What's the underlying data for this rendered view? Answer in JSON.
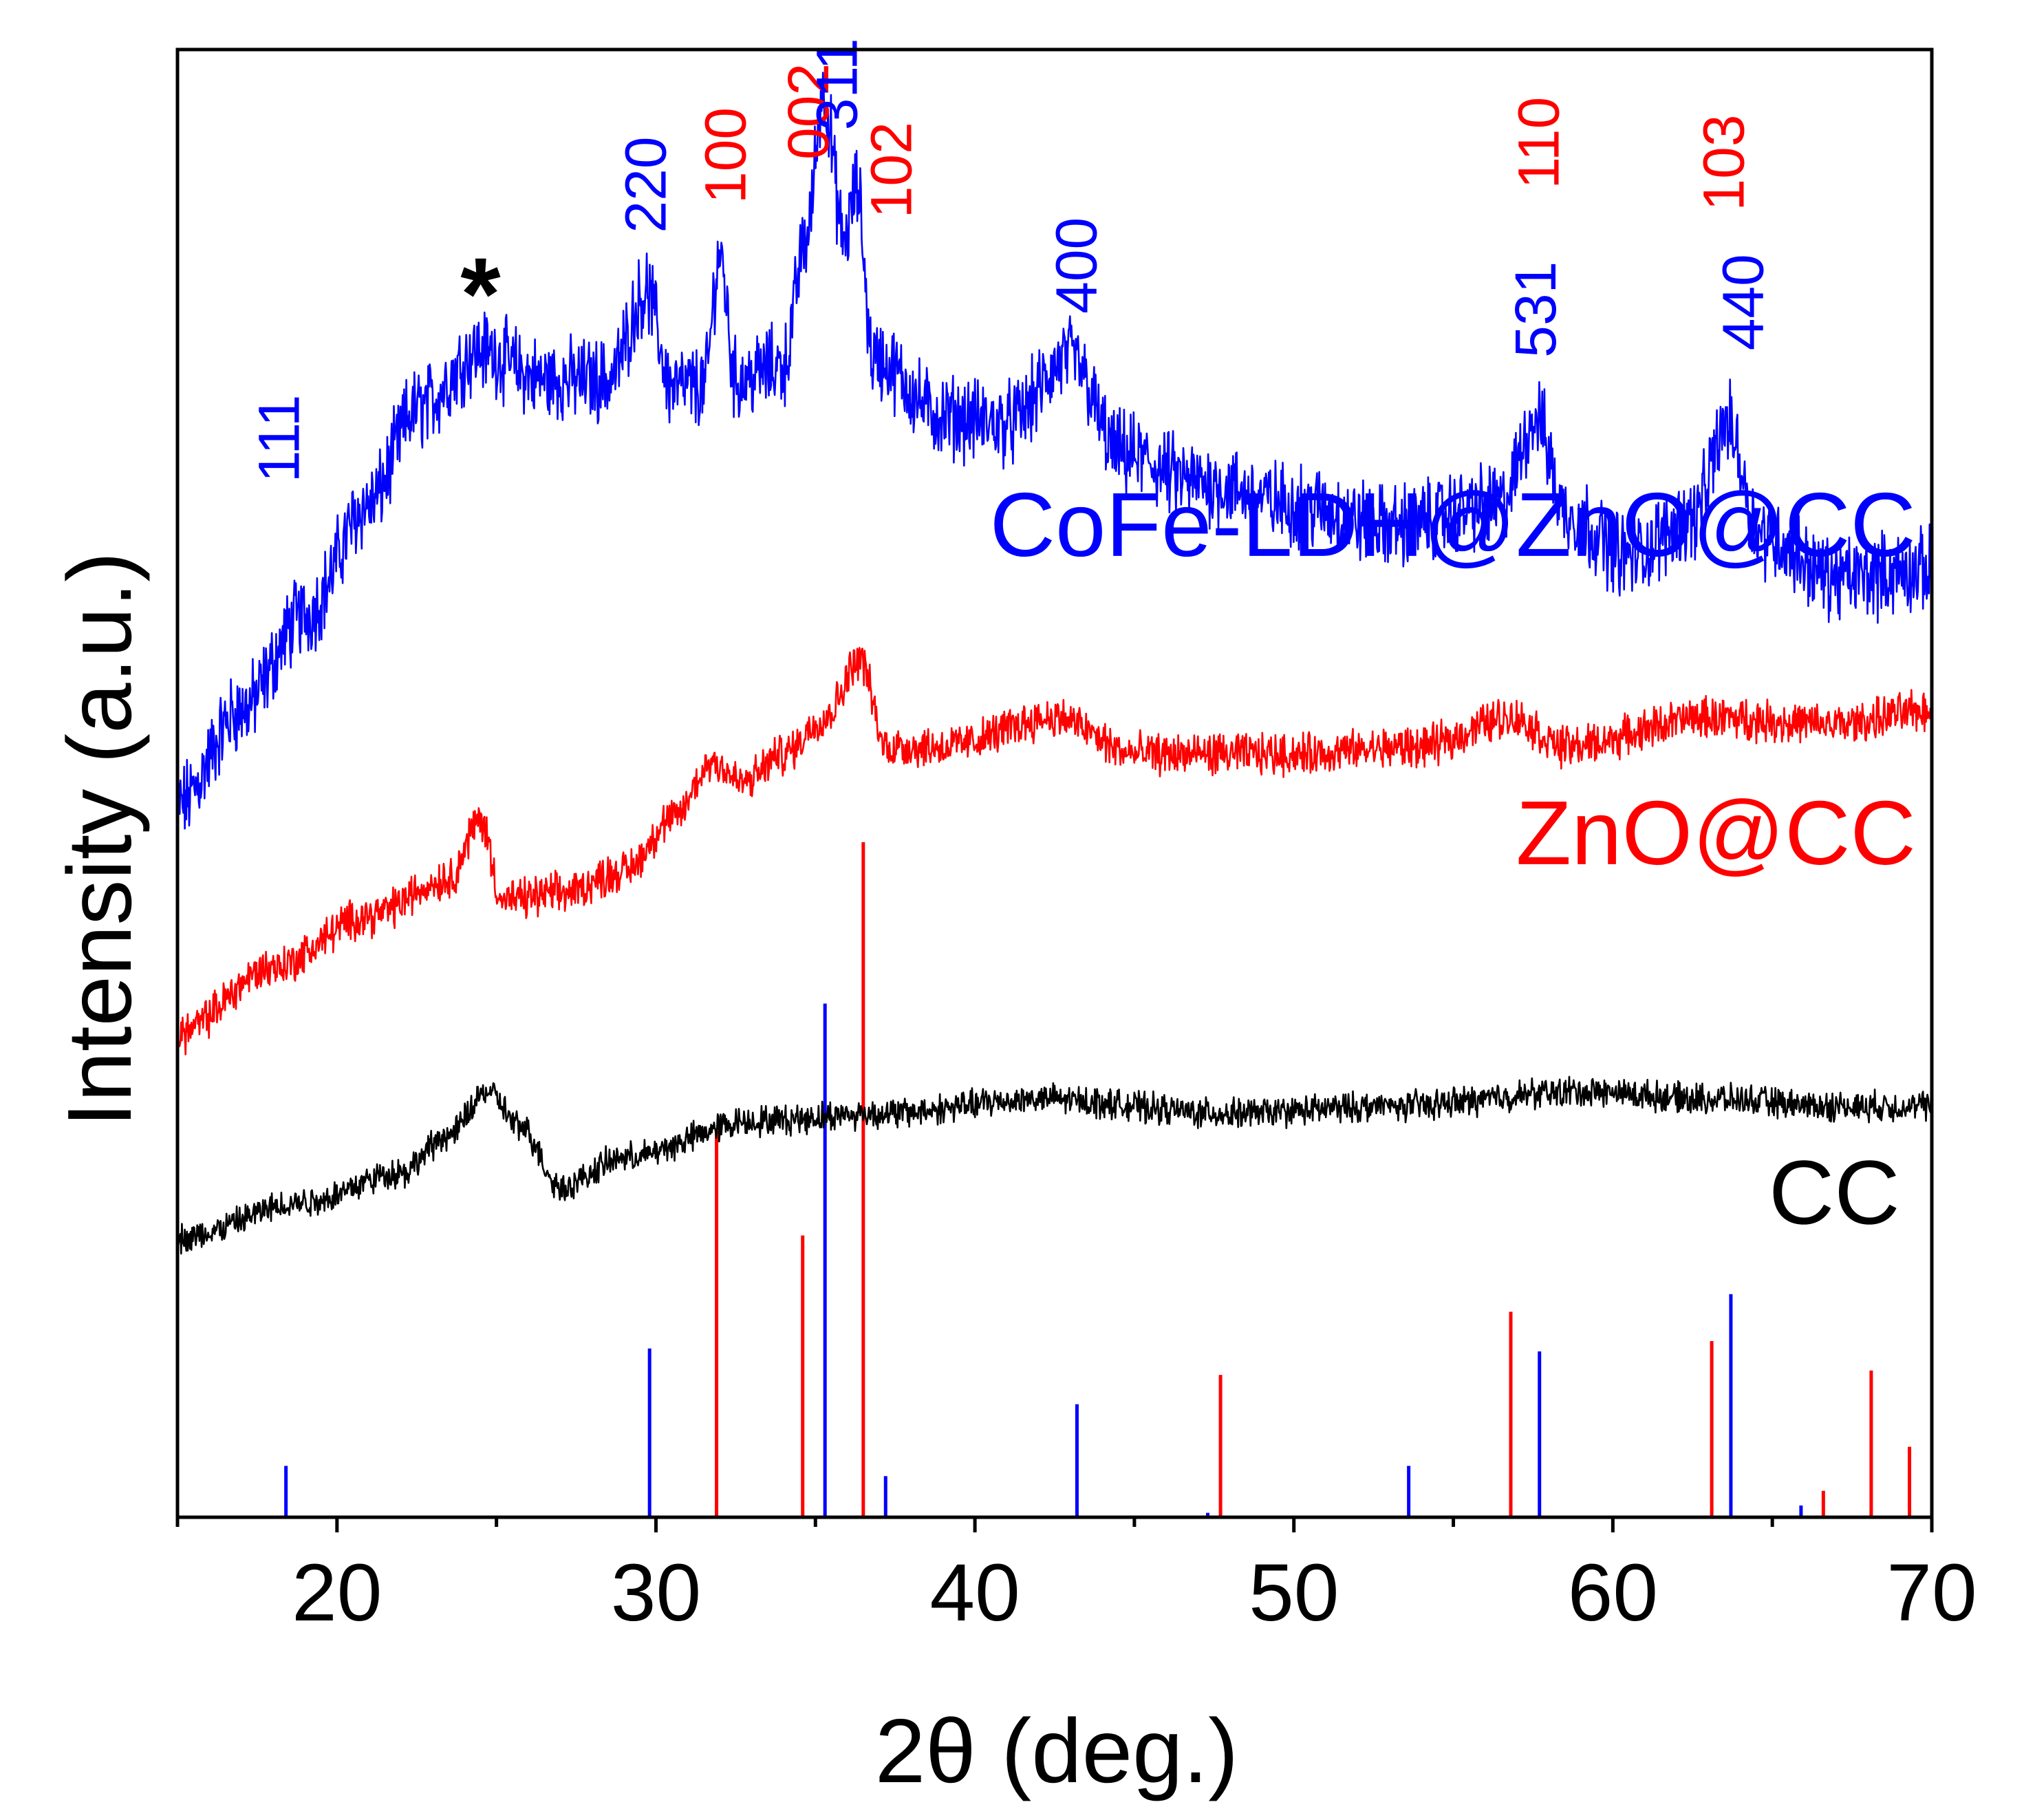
{
  "chart_data": {
    "type": "line",
    "title": "",
    "xlabel": "2θ (deg.)",
    "ylabel": "Intensity (a.u.)",
    "xlim": [
      15,
      70
    ],
    "x_ticks": [
      20,
      30,
      40,
      50,
      60,
      70
    ],
    "x_minor_step": 5,
    "y_ticks": [],
    "grid": false,
    "colors": {
      "blue": "#0000ff",
      "red": "#ff0000",
      "black": "#000000"
    },
    "series": [
      {
        "name": "CoFe-LDH@ZnO@CC",
        "color": "#0000ff",
        "noise": 0.045,
        "points": [
          [
            15,
            0.485
          ],
          [
            17,
            0.55
          ],
          [
            19,
            0.615
          ],
          [
            21,
            0.69
          ],
          [
            22.5,
            0.755
          ],
          [
            24.5,
            0.795
          ],
          [
            26.5,
            0.775
          ],
          [
            28.5,
            0.775
          ],
          [
            29.7,
            0.835
          ],
          [
            30.5,
            0.77
          ],
          [
            31.5,
            0.77
          ],
          [
            32.0,
            0.86
          ],
          [
            32.5,
            0.775
          ],
          [
            34,
            0.785
          ],
          [
            34.7,
            0.87
          ],
          [
            35.25,
            0.97
          ],
          [
            35.9,
            0.87
          ],
          [
            36.3,
            0.905
          ],
          [
            36.8,
            0.79
          ],
          [
            39,
            0.75
          ],
          [
            41,
            0.745
          ],
          [
            43,
            0.79
          ],
          [
            44.5,
            0.725
          ],
          [
            47,
            0.705
          ],
          [
            50,
            0.69
          ],
          [
            53,
            0.675
          ],
          [
            56.5,
            0.69
          ],
          [
            57.6,
            0.75
          ],
          [
            58.5,
            0.685
          ],
          [
            60.5,
            0.655
          ],
          [
            62.5,
            0.68
          ],
          [
            63.6,
            0.745
          ],
          [
            64.6,
            0.67
          ],
          [
            67,
            0.64
          ],
          [
            70,
            0.645
          ]
        ]
      },
      {
        "name": "ZnO@CC",
        "color": "#ff0000",
        "noise": 0.022,
        "points": [
          [
            15,
            0.33
          ],
          [
            18,
            0.375
          ],
          [
            21,
            0.41
          ],
          [
            23.5,
            0.435
          ],
          [
            24.5,
            0.475
          ],
          [
            25.2,
            0.42
          ],
          [
            27,
            0.425
          ],
          [
            29,
            0.44
          ],
          [
            30.5,
            0.475
          ],
          [
            31.8,
            0.515
          ],
          [
            32.7,
            0.5
          ],
          [
            34,
            0.52
          ],
          [
            35.3,
            0.545
          ],
          [
            36.4,
            0.585
          ],
          [
            37.2,
            0.525
          ],
          [
            39,
            0.525
          ],
          [
            42.5,
            0.545
          ],
          [
            45,
            0.52
          ],
          [
            50,
            0.52
          ],
          [
            54,
            0.525
          ],
          [
            56.8,
            0.545
          ],
          [
            58.5,
            0.525
          ],
          [
            63,
            0.545
          ],
          [
            67,
            0.54
          ],
          [
            70,
            0.55
          ]
        ]
      },
      {
        "name": "CC",
        "color": "#000000",
        "noise": 0.016,
        "points": [
          [
            15,
            0.19
          ],
          [
            19,
            0.215
          ],
          [
            22,
            0.235
          ],
          [
            23.5,
            0.26
          ],
          [
            24.7,
            0.29
          ],
          [
            25.8,
            0.265
          ],
          [
            27,
            0.225
          ],
          [
            29,
            0.245
          ],
          [
            33,
            0.27
          ],
          [
            37,
            0.275
          ],
          [
            42,
            0.285
          ],
          [
            48,
            0.275
          ],
          [
            53,
            0.28
          ],
          [
            59,
            0.29
          ],
          [
            63,
            0.285
          ],
          [
            67,
            0.28
          ],
          [
            70,
            0.28
          ]
        ]
      }
    ],
    "reference_bars": [
      {
        "color": "#0000ff",
        "x": [
          18.4,
          29.8,
          35.3,
          37.2,
          43.2,
          47.3,
          53.6,
          57.7,
          63.7,
          65.9
        ],
        "heights": [
          0.035,
          0.115,
          0.35,
          0.028,
          0.077,
          0.003,
          0.035,
          0.113,
          0.152,
          0.008
        ]
      },
      {
        "color": "#ff0000",
        "x": [
          31.9,
          34.6,
          36.5,
          47.7,
          56.8,
          63.1,
          66.6,
          68.1,
          69.3
        ],
        "heights": [
          0.263,
          0.192,
          0.46,
          0.097,
          0.14,
          0.12,
          0.018,
          0.1,
          0.048
        ]
      }
    ],
    "series_labels": [
      {
        "text": "CoFe-LDH@ZnO@CC",
        "color": "#0000ff",
        "x": 69.5,
        "y": 0.655
      },
      {
        "text": "ZnO@CC",
        "color": "#ff0000",
        "x": 69.5,
        "y": 0.445
      },
      {
        "text": "CC",
        "color": "#000000",
        "x": 69.0,
        "y": 0.2
      }
    ],
    "peak_labels": [
      {
        "text": "111",
        "color": "#0000ff",
        "x": 18.2,
        "y": 0.705
      },
      {
        "text": "220",
        "color": "#0000ff",
        "x": 29.7,
        "y": 0.875
      },
      {
        "text": "100",
        "color": "#ff0000",
        "x": 32.2,
        "y": 0.895
      },
      {
        "text": "002",
        "color": "#ff0000",
        "x": 34.8,
        "y": 0.925
      },
      {
        "text": "311",
        "color": "#0000ff",
        "x": 35.7,
        "y": 0.945
      },
      {
        "text": "102",
        "color": "#ff0000",
        "x": 37.4,
        "y": 0.885
      },
      {
        "text": "400",
        "color": "#0000ff",
        "x": 43.2,
        "y": 0.82
      },
      {
        "text": "531",
        "color": "#0000ff",
        "x": 57.6,
        "y": 0.79
      },
      {
        "text": "110",
        "color": "#ff0000",
        "x": 57.7,
        "y": 0.905
      },
      {
        "text": "440",
        "color": "#0000ff",
        "x": 64.1,
        "y": 0.795
      },
      {
        "text": "103",
        "color": "#ff0000",
        "x": 63.5,
        "y": 0.89
      }
    ],
    "annotation": {
      "text": "*",
      "color": "#000000",
      "x": 24.5,
      "y": 0.835
    }
  }
}
